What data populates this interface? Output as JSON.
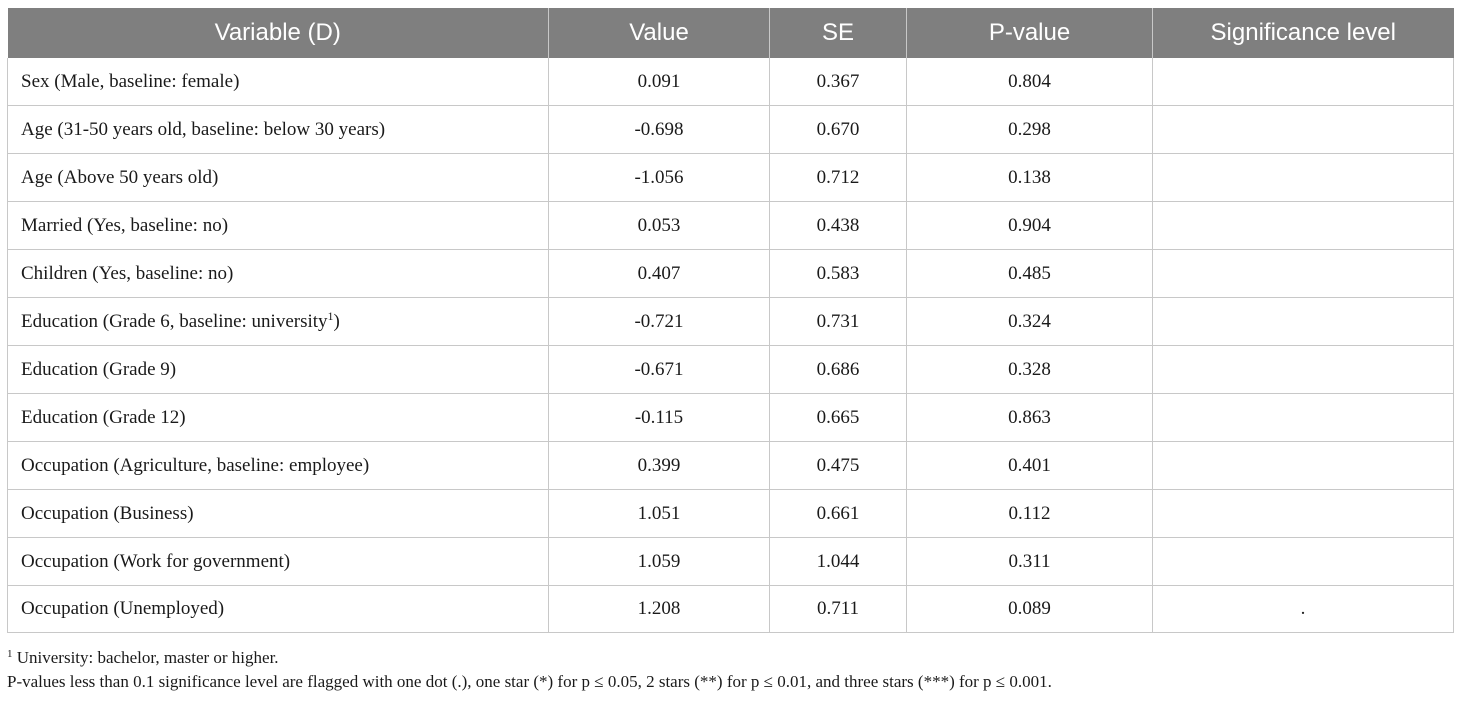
{
  "table": {
    "headers": [
      "Variable (D)",
      "Value",
      "SE",
      "P-value",
      "Significance level"
    ],
    "rows": [
      {
        "variable": "Sex (Male, baseline: female)",
        "sup": "",
        "suffix": "",
        "value": "0.091",
        "se": "0.367",
        "p": "0.804",
        "sig": ""
      },
      {
        "variable": "Age (31-50 years old, baseline: below 30 years)",
        "sup": "",
        "suffix": "",
        "value": "-0.698",
        "se": "0.670",
        "p": "0.298",
        "sig": ""
      },
      {
        "variable": "Age (Above 50 years old)",
        "sup": "",
        "suffix": "",
        "value": "-1.056",
        "se": "0.712",
        "p": "0.138",
        "sig": ""
      },
      {
        "variable": "Married (Yes, baseline: no)",
        "sup": "",
        "suffix": "",
        "value": "0.053",
        "se": "0.438",
        "p": "0.904",
        "sig": ""
      },
      {
        "variable": "Children (Yes, baseline: no)",
        "sup": "",
        "suffix": "",
        "value": "0.407",
        "se": "0.583",
        "p": "0.485",
        "sig": ""
      },
      {
        "variable": "Education (Grade 6, baseline: university",
        "sup": "1",
        "suffix": ")",
        "value": "-0.721",
        "se": "0.731",
        "p": "0.324",
        "sig": ""
      },
      {
        "variable": "Education (Grade 9)",
        "sup": "",
        "suffix": "",
        "value": "-0.671",
        "se": "0.686",
        "p": "0.328",
        "sig": ""
      },
      {
        "variable": "Education (Grade 12)",
        "sup": "",
        "suffix": "",
        "value": "-0.115",
        "se": "0.665",
        "p": "0.863",
        "sig": ""
      },
      {
        "variable": "Occupation (Agriculture, baseline: employee)",
        "sup": "",
        "suffix": "",
        "value": "0.399",
        "se": "0.475",
        "p": "0.401",
        "sig": ""
      },
      {
        "variable": "Occupation (Business)",
        "sup": "",
        "suffix": "",
        "value": "1.051",
        "se": "0.661",
        "p": "0.112",
        "sig": ""
      },
      {
        "variable": "Occupation (Work for government)",
        "sup": "",
        "suffix": "",
        "value": "1.059",
        "se": "1.044",
        "p": "0.311",
        "sig": ""
      },
      {
        "variable": "Occupation (Unemployed)",
        "sup": "",
        "suffix": "",
        "value": "1.208",
        "se": "0.711",
        "p": "0.089",
        "sig": "."
      }
    ]
  },
  "footnotes": {
    "note1_marker": "1",
    "note1_text": " University: bachelor, master or higher.",
    "note2_text": "P-values less than 0.1 significance level are flagged with one dot (.), one star (*) for p ≤ 0.05, 2 stars (**) for p ≤ 0.01, and three stars (***) for p ≤ 0.001."
  }
}
